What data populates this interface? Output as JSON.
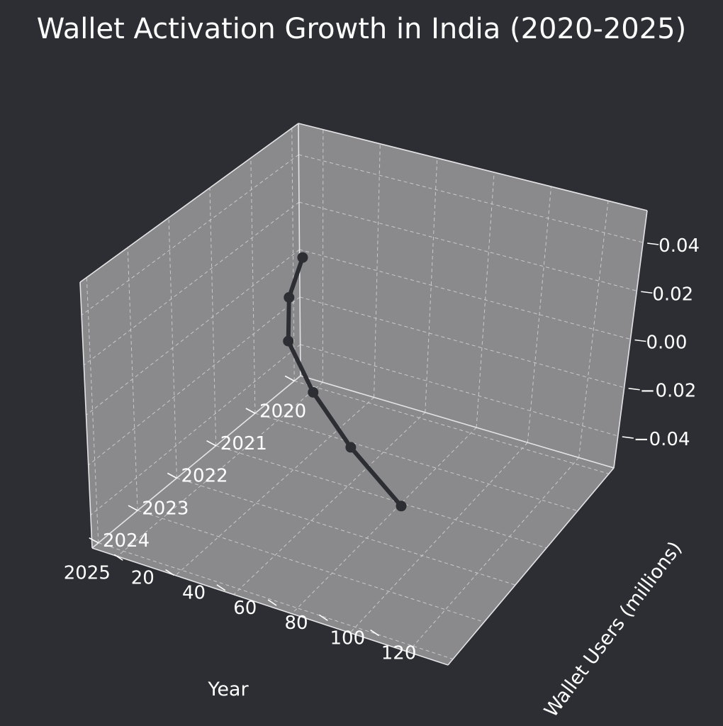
{
  "chart_data": {
    "type": "line",
    "projection": "3d",
    "title": "Wallet Activation Growth in India (2020-2025)",
    "xlabel": "Year",
    "ylabel": "Wallet Users (millions)",
    "zlabel": "",
    "x_ticks": [
      "2020",
      "2021",
      "2022",
      "2023",
      "2024",
      "2025"
    ],
    "y_ticks": [
      "20",
      "40",
      "60",
      "80",
      "100",
      "120"
    ],
    "z_ticks": [
      "0.04",
      "0.02",
      "0.00",
      "−0.02",
      "−0.04"
    ],
    "x_values": [
      2020,
      2021,
      2022,
      2023,
      2024,
      2025
    ],
    "y_values": [
      15,
      25,
      40,
      65,
      95,
      130
    ],
    "z_values": [
      0,
      0,
      0,
      0,
      0,
      0
    ],
    "xlim": [
      2020,
      2025
    ],
    "ylim": [
      15,
      130
    ],
    "zlim": [
      -0.05,
      0.05
    ],
    "grid": true,
    "line_color": "#2d2e33",
    "pane_color": "#8a8a8c",
    "background_color": "#2d2e33",
    "line_style": "solid",
    "marker": "circle",
    "legend": "none"
  }
}
